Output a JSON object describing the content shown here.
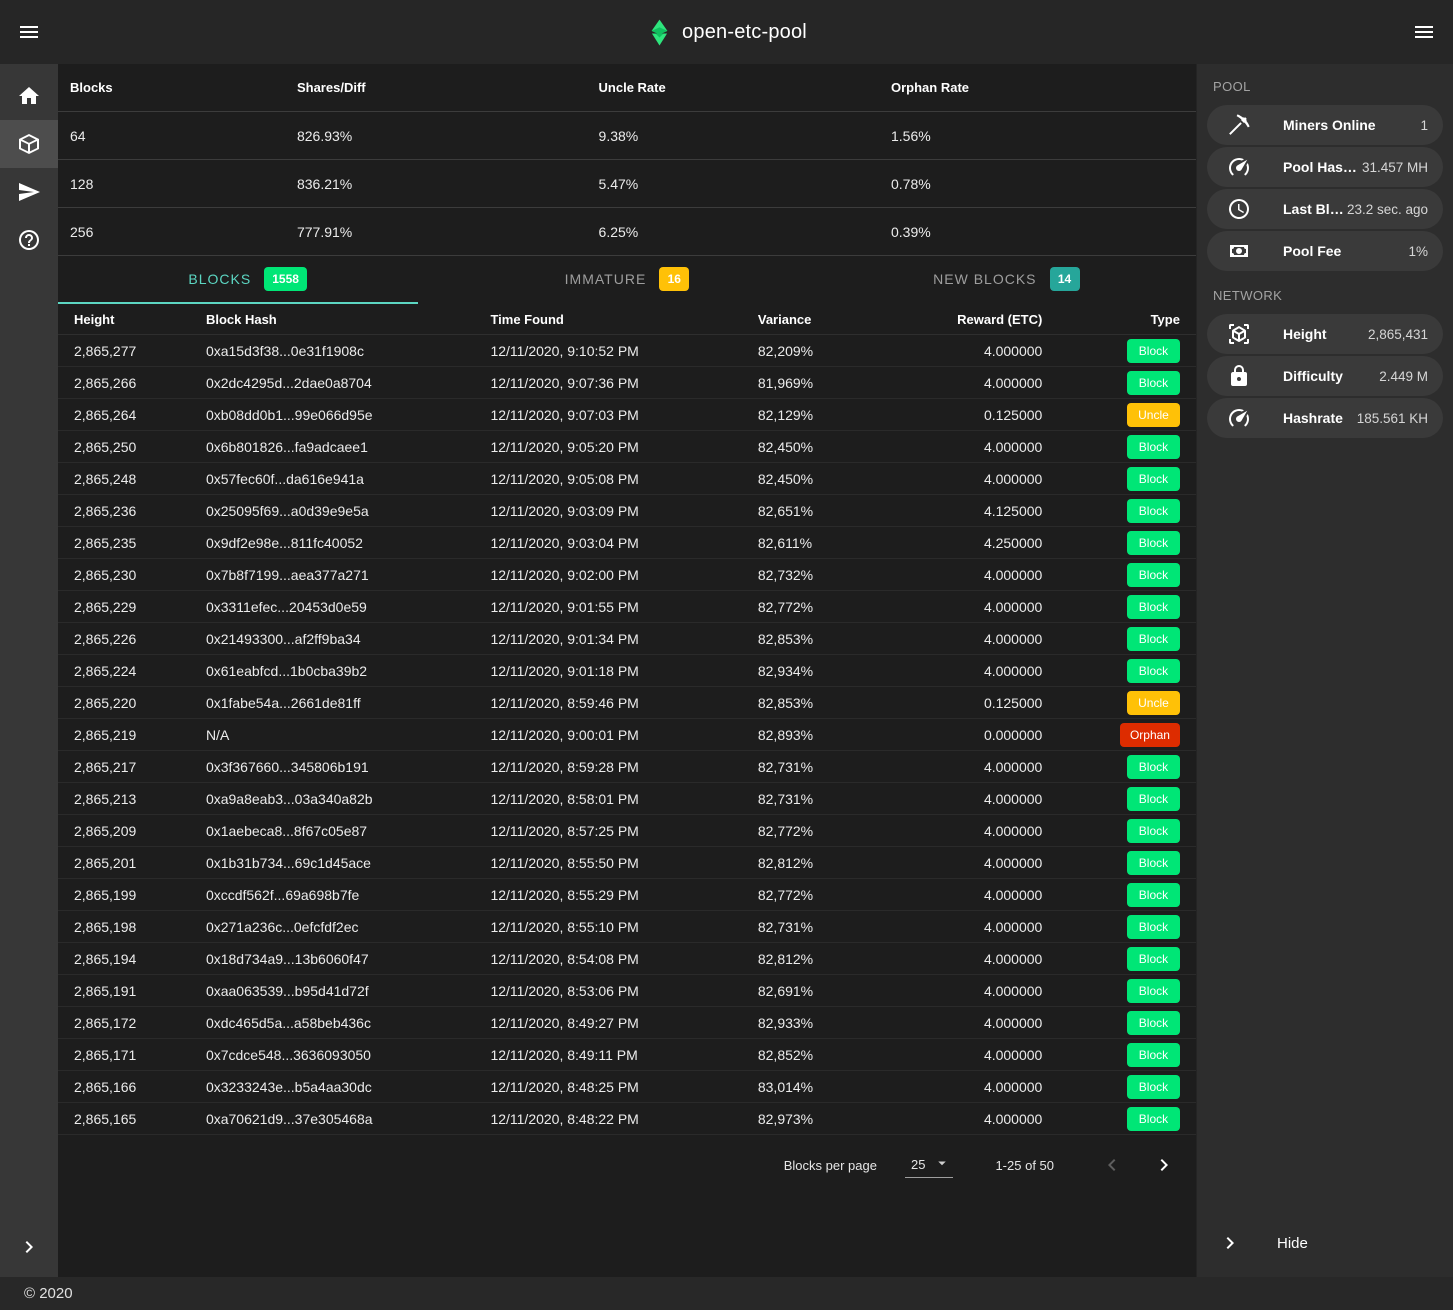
{
  "header": {
    "title": "open-etc-pool"
  },
  "left_nav": {
    "items": [
      {
        "id": "home",
        "icon": "home-icon",
        "active": false
      },
      {
        "id": "blocks",
        "icon": "cube-icon",
        "active": true
      },
      {
        "id": "payments",
        "icon": "send-icon",
        "active": false
      },
      {
        "id": "help",
        "icon": "help-icon",
        "active": false
      }
    ]
  },
  "summary_table": {
    "columns": [
      "Blocks",
      "Shares/Diff",
      "Uncle Rate",
      "Orphan Rate"
    ],
    "rows": [
      [
        "64",
        "826.93%",
        "9.38%",
        "1.56%"
      ],
      [
        "128",
        "836.21%",
        "5.47%",
        "0.78%"
      ],
      [
        "256",
        "777.91%",
        "6.25%",
        "0.39%"
      ]
    ]
  },
  "tabs": [
    {
      "id": "blocks",
      "label": "BLOCKS",
      "count": "1558",
      "badge_color": "#00e676",
      "active": true
    },
    {
      "id": "immature",
      "label": "IMMATURE",
      "count": "16",
      "badge_color": "#ffc107",
      "active": false
    },
    {
      "id": "new-blocks",
      "label": "NEW BLOCKS",
      "count": "14",
      "badge_color": "#26a69a",
      "active": false
    }
  ],
  "blocks_table": {
    "columns": [
      "Height",
      "Block Hash",
      "Time Found",
      "Variance",
      "Reward (ETC)",
      "Type"
    ],
    "rows": [
      {
        "height": "2,865,277",
        "hash": "0xa15d3f38...0e31f1908c",
        "time": "12/11/2020, 9:10:52 PM",
        "variance": "82,209%",
        "reward": "4.000000",
        "type": "Block"
      },
      {
        "height": "2,865,266",
        "hash": "0x2dc4295d...2dae0a8704",
        "time": "12/11/2020, 9:07:36 PM",
        "variance": "81,969%",
        "reward": "4.000000",
        "type": "Block"
      },
      {
        "height": "2,865,264",
        "hash": "0xb08dd0b1...99e066d95e",
        "time": "12/11/2020, 9:07:03 PM",
        "variance": "82,129%",
        "reward": "0.125000",
        "type": "Uncle"
      },
      {
        "height": "2,865,250",
        "hash": "0x6b801826...fa9adcaee1",
        "time": "12/11/2020, 9:05:20 PM",
        "variance": "82,450%",
        "reward": "4.000000",
        "type": "Block"
      },
      {
        "height": "2,865,248",
        "hash": "0x57fec60f...da616e941a",
        "time": "12/11/2020, 9:05:08 PM",
        "variance": "82,450%",
        "reward": "4.000000",
        "type": "Block"
      },
      {
        "height": "2,865,236",
        "hash": "0x25095f69...a0d39e9e5a",
        "time": "12/11/2020, 9:03:09 PM",
        "variance": "82,651%",
        "reward": "4.125000",
        "type": "Block"
      },
      {
        "height": "2,865,235",
        "hash": "0x9df2e98e...811fc40052",
        "time": "12/11/2020, 9:03:04 PM",
        "variance": "82,611%",
        "reward": "4.250000",
        "type": "Block"
      },
      {
        "height": "2,865,230",
        "hash": "0x7b8f7199...aea377a271",
        "time": "12/11/2020, 9:02:00 PM",
        "variance": "82,732%",
        "reward": "4.000000",
        "type": "Block"
      },
      {
        "height": "2,865,229",
        "hash": "0x3311efec...20453d0e59",
        "time": "12/11/2020, 9:01:55 PM",
        "variance": "82,772%",
        "reward": "4.000000",
        "type": "Block"
      },
      {
        "height": "2,865,226",
        "hash": "0x21493300...af2ff9ba34",
        "time": "12/11/2020, 9:01:34 PM",
        "variance": "82,853%",
        "reward": "4.000000",
        "type": "Block"
      },
      {
        "height": "2,865,224",
        "hash": "0x61eabfcd...1b0cba39b2",
        "time": "12/11/2020, 9:01:18 PM",
        "variance": "82,934%",
        "reward": "4.000000",
        "type": "Block"
      },
      {
        "height": "2,865,220",
        "hash": "0x1fabe54a...2661de81ff",
        "time": "12/11/2020, 8:59:46 PM",
        "variance": "82,853%",
        "reward": "0.125000",
        "type": "Uncle"
      },
      {
        "height": "2,865,219",
        "hash": "N/A",
        "time": "12/11/2020, 9:00:01 PM",
        "variance": "82,893%",
        "reward": "0.000000",
        "type": "Orphan"
      },
      {
        "height": "2,865,217",
        "hash": "0x3f367660...345806b191",
        "time": "12/11/2020, 8:59:28 PM",
        "variance": "82,731%",
        "reward": "4.000000",
        "type": "Block"
      },
      {
        "height": "2,865,213",
        "hash": "0xa9a8eab3...03a340a82b",
        "time": "12/11/2020, 8:58:01 PM",
        "variance": "82,731%",
        "reward": "4.000000",
        "type": "Block"
      },
      {
        "height": "2,865,209",
        "hash": "0x1aebeca8...8f67c05e87",
        "time": "12/11/2020, 8:57:25 PM",
        "variance": "82,772%",
        "reward": "4.000000",
        "type": "Block"
      },
      {
        "height": "2,865,201",
        "hash": "0x1b31b734...69c1d45ace",
        "time": "12/11/2020, 8:55:50 PM",
        "variance": "82,812%",
        "reward": "4.000000",
        "type": "Block"
      },
      {
        "height": "2,865,199",
        "hash": "0xccdf562f...69a698b7fe",
        "time": "12/11/2020, 8:55:29 PM",
        "variance": "82,772%",
        "reward": "4.000000",
        "type": "Block"
      },
      {
        "height": "2,865,198",
        "hash": "0x271a236c...0efcfdf2ec",
        "time": "12/11/2020, 8:55:10 PM",
        "variance": "82,731%",
        "reward": "4.000000",
        "type": "Block"
      },
      {
        "height": "2,865,194",
        "hash": "0x18d734a9...13b6060f47",
        "time": "12/11/2020, 8:54:08 PM",
        "variance": "82,812%",
        "reward": "4.000000",
        "type": "Block"
      },
      {
        "height": "2,865,191",
        "hash": "0xaa063539...b95d41d72f",
        "time": "12/11/2020, 8:53:06 PM",
        "variance": "82,691%",
        "reward": "4.000000",
        "type": "Block"
      },
      {
        "height": "2,865,172",
        "hash": "0xdc465d5a...a58beb436c",
        "time": "12/11/2020, 8:49:27 PM",
        "variance": "82,933%",
        "reward": "4.000000",
        "type": "Block"
      },
      {
        "height": "2,865,171",
        "hash": "0x7cdce548...3636093050",
        "time": "12/11/2020, 8:49:11 PM",
        "variance": "82,852%",
        "reward": "4.000000",
        "type": "Block"
      },
      {
        "height": "2,865,166",
        "hash": "0x3233243e...b5a4aa30dc",
        "time": "12/11/2020, 8:48:25 PM",
        "variance": "83,014%",
        "reward": "4.000000",
        "type": "Block"
      },
      {
        "height": "2,865,165",
        "hash": "0xa70621d9...37e305468a",
        "time": "12/11/2020, 8:48:22 PM",
        "variance": "82,973%",
        "reward": "4.000000",
        "type": "Block"
      }
    ]
  },
  "type_colors": {
    "Block": "#00e676",
    "Uncle": "#ffc107",
    "Orphan": "#dd2c00"
  },
  "pagination": {
    "label": "Blocks per page",
    "per_page": "25",
    "range": "1-25 of 50"
  },
  "pool_panel": {
    "title": "POOL",
    "items": [
      {
        "icon": "pickaxe-icon",
        "label": "Miners Online",
        "value": "1"
      },
      {
        "icon": "speedometer-icon",
        "label": "Pool Hashrate",
        "value": "31.457 MH"
      },
      {
        "icon": "clock-icon",
        "label": "Last Block Found",
        "value": "23.2 sec. ago"
      },
      {
        "icon": "cash-icon",
        "label": "Pool Fee",
        "value": "1%"
      }
    ]
  },
  "network_panel": {
    "title": "NETWORK",
    "items": [
      {
        "icon": "cube-scan-icon",
        "label": "Height",
        "value": "2,865,431"
      },
      {
        "icon": "lock-icon",
        "label": "Difficulty",
        "value": "2.449 M"
      },
      {
        "icon": "speedometer-icon",
        "label": "Hashrate",
        "value": "185.561 KH"
      }
    ]
  },
  "side_footer": {
    "label": "Hide"
  },
  "footer": {
    "copyright": "© 2020"
  },
  "colors": {
    "accent_teal": "#5cd6c2",
    "brand_green": "#2ee57d"
  }
}
